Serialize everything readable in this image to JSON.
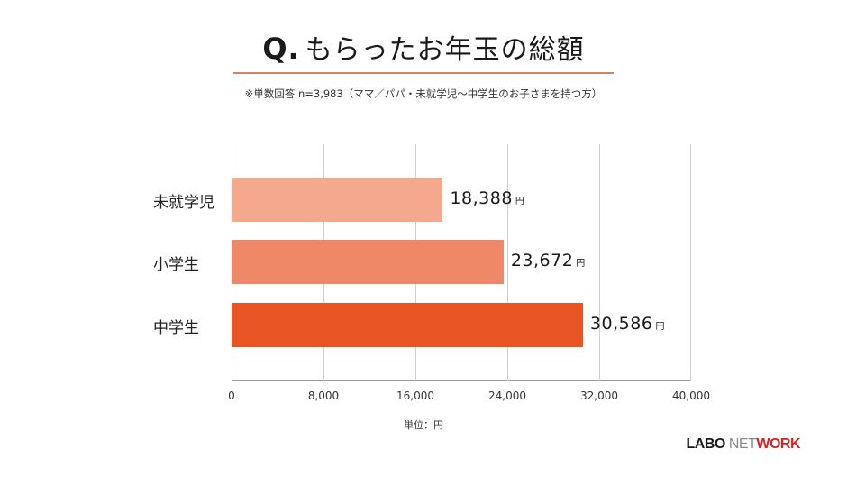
{
  "header": {
    "q_mark": "Q.",
    "title": "もらったお年玉の総額",
    "subtitle": "※単数回答 n=3,983（ママ／パパ・未就学児〜中学生のお子さまを持つ方）"
  },
  "chart_data": {
    "type": "bar",
    "orientation": "horizontal",
    "title": "もらったお年玉の総額",
    "subtitle": "※単数回答 n=3,983（ママ／パパ・未就学児〜中学生のお子さまを持つ方）",
    "categories": [
      "未就学児",
      "小学生",
      "中学生"
    ],
    "values": [
      18388,
      23672,
      30586
    ],
    "value_labels": [
      "18,388",
      "23,672",
      "30,586"
    ],
    "value_unit": "円",
    "colors": [
      "#f4a98f",
      "#ef8866",
      "#e85422"
    ],
    "xlabel": "単位：円",
    "ylabel": "",
    "xlim": [
      0,
      40000
    ],
    "xticks": [
      "0",
      "8,000",
      "16,000",
      "24,000",
      "32,000",
      "40,000"
    ],
    "grid": true,
    "legend": false
  },
  "footer": {
    "unit_label": "単位：円",
    "logo": {
      "part1": "LABO",
      "part2": "NET",
      "part3": "WORK"
    }
  }
}
